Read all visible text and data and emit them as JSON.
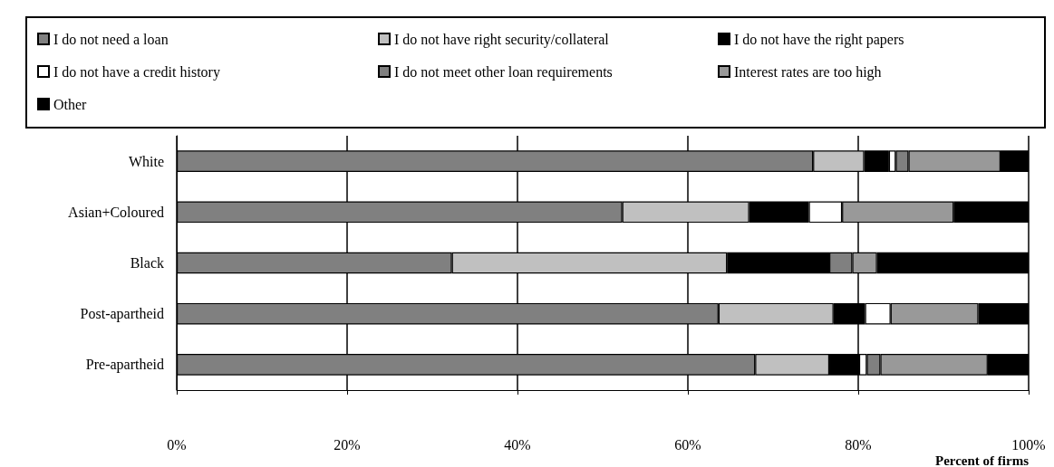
{
  "chart_data": {
    "type": "bar",
    "orientation": "horizontal",
    "stacked": true,
    "categories": [
      "White",
      "Asian+Coloured",
      "Black",
      "Post-apartheid",
      "Pre-apartheid"
    ],
    "series": [
      {
        "name": "I do not need a loan",
        "color": "#808080",
        "values": [
          74.7,
          52.3,
          32.3,
          63.6,
          67.9
        ]
      },
      {
        "name": "I do not have right security/collateral",
        "color": "#c0c0c0",
        "values": [
          6.0,
          14.9,
          32.3,
          13.5,
          8.7
        ]
      },
      {
        "name": "I do not have the right papers",
        "color": "#000000",
        "values": [
          2.9,
          7.0,
          12.0,
          3.7,
          3.5
        ]
      },
      {
        "name": "I do not have a credit history",
        "color": "#ffffff",
        "values": [
          0.8,
          3.9,
          null,
          3.0,
          0.9
        ]
      },
      {
        "name": "I do not meet other loan requirements",
        "color": "#808080",
        "values": [
          1.5,
          null,
          2.7,
          null,
          1.6
        ]
      },
      {
        "name": "Interest rates are too high",
        "color": "#999999",
        "values": [
          10.8,
          13.1,
          2.9,
          10.3,
          12.6
        ]
      },
      {
        "name": "Other",
        "color": "#000000",
        "values": [
          3.3,
          8.8,
          17.8,
          5.9,
          4.8
        ]
      }
    ],
    "xlim": [
      0,
      100
    ],
    "xticks": [
      {
        "value": 0,
        "label": "0%"
      },
      {
        "value": 20,
        "label": "20%"
      },
      {
        "value": 40,
        "label": "40%"
      },
      {
        "value": 60,
        "label": "60%"
      },
      {
        "value": 80,
        "label": "80%"
      },
      {
        "value": 100,
        "label": "100%"
      }
    ],
    "xlabel": "Percent of firms",
    "grid": "x",
    "legend": "top"
  }
}
